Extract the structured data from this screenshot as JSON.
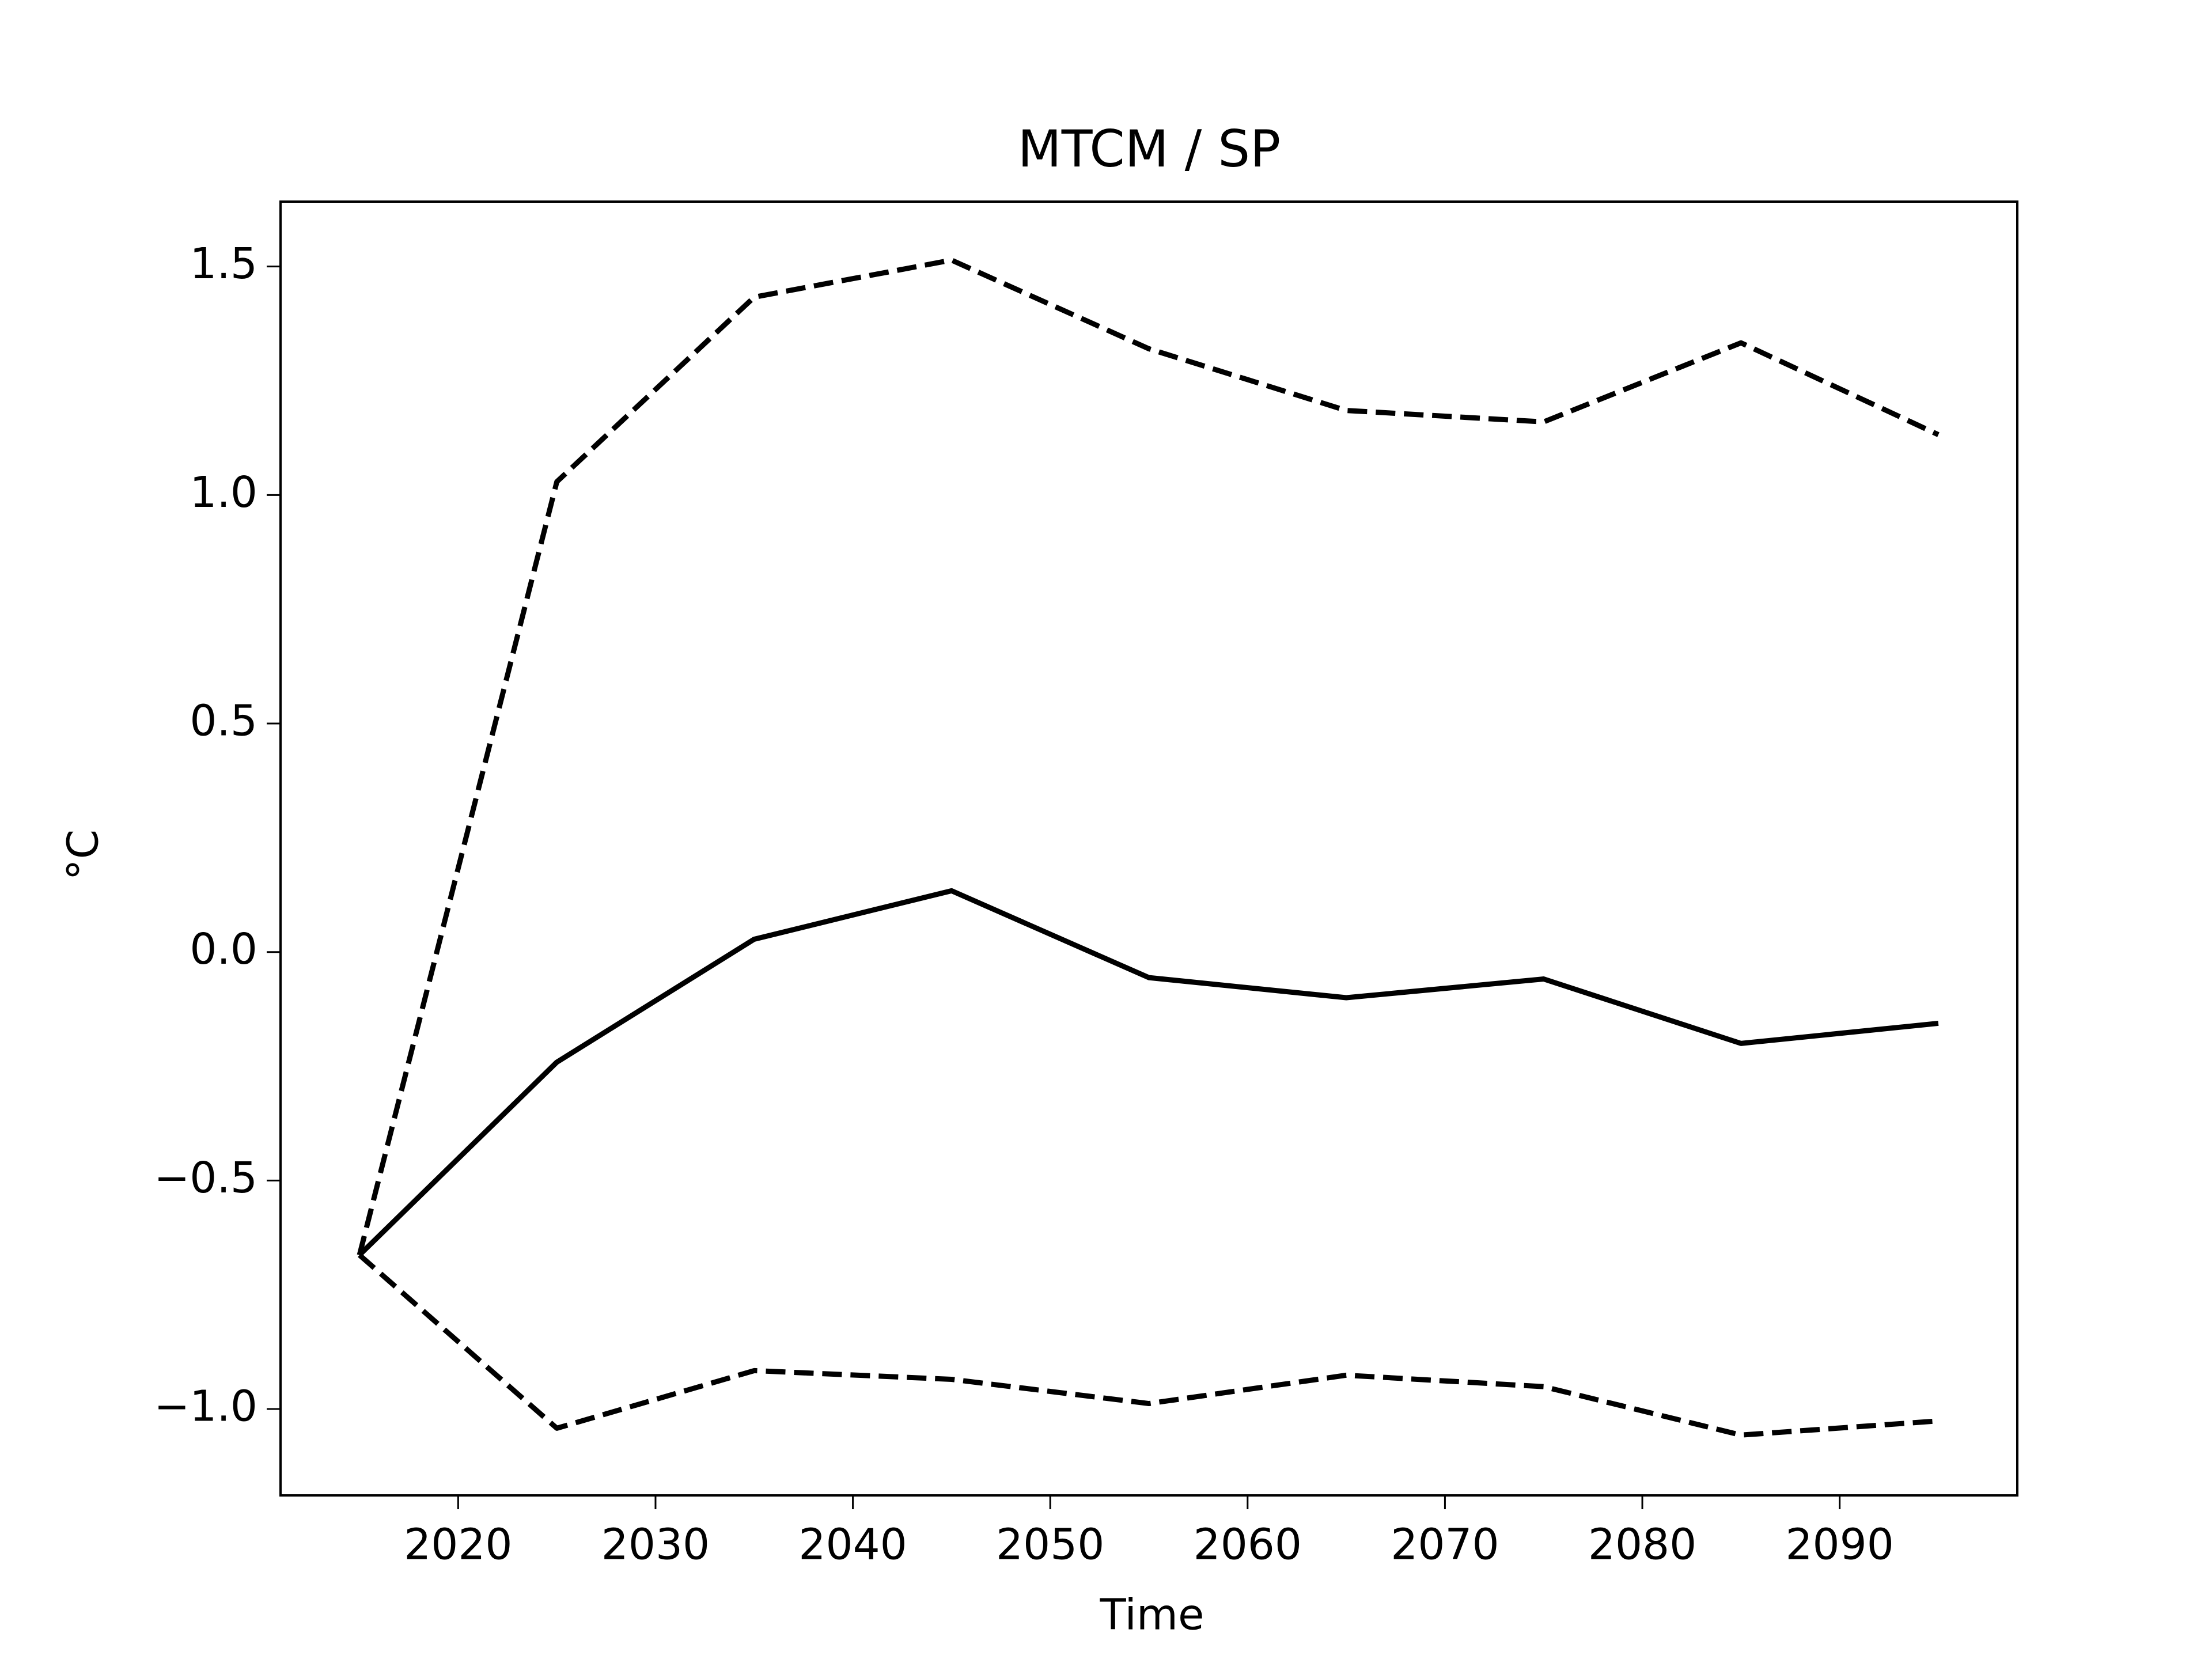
{
  "chart_data": {
    "type": "line",
    "title": "MTCM / SP",
    "xlabel": "Time",
    "ylabel": "°C",
    "x": [
      2015,
      2025,
      2035,
      2045,
      2055,
      2065,
      2075,
      2085,
      2095
    ],
    "series": [
      {
        "color": "#000000",
        "dashed": false,
        "values": [
          -0.663,
          -0.241,
          0.028,
          0.134,
          -0.056,
          -0.1,
          -0.059,
          -0.2,
          -0.156
        ]
      },
      {
        "color": "#000000",
        "dashed": true,
        "values": [
          -0.663,
          1.029,
          1.433,
          1.514,
          1.32,
          1.185,
          1.16,
          1.333,
          1.132
        ]
      },
      {
        "color": "#000000",
        "dashed": true,
        "values": [
          -0.663,
          -1.042,
          -0.916,
          -0.935,
          -0.988,
          -0.926,
          -0.951,
          -1.057,
          -1.026
        ]
      }
    ],
    "xlim": [
      2011,
      2099
    ],
    "ylim": [
      -1.189,
      1.642
    ],
    "xticks": [
      2020,
      2030,
      2040,
      2050,
      2060,
      2070,
      2080,
      2090
    ],
    "yticks": [
      {
        "value": -1.0,
        "label": "−1.0"
      },
      {
        "value": -0.5,
        "label": "−0.5"
      },
      {
        "value": 0.0,
        "label": "0.0"
      },
      {
        "value": 0.5,
        "label": "0.5"
      },
      {
        "value": 1.0,
        "label": "1.0"
      },
      {
        "value": 1.5,
        "label": "1.5"
      }
    ],
    "grid": false
  }
}
